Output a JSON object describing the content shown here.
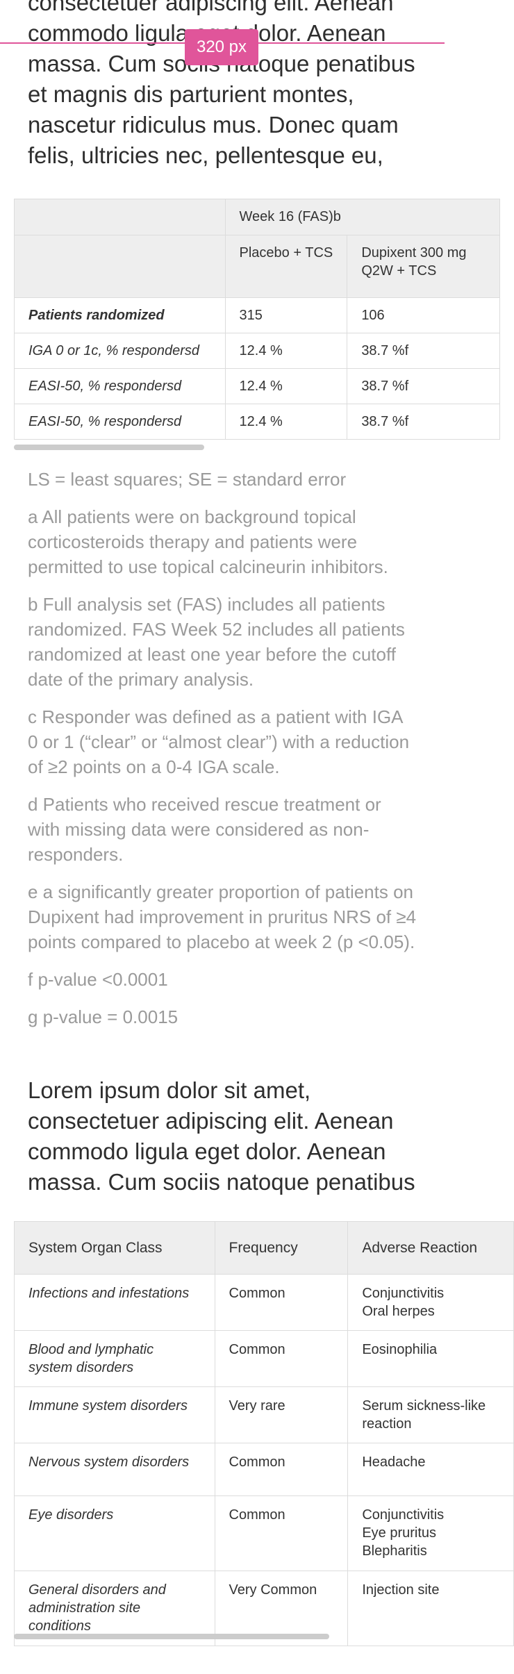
{
  "intro_paragraph": "consectetuer adipiscing elit. Aenean commodo ligula eget dolor. Aenean massa. Cum sociis natoque penatibus et magnis dis parturient montes, nascetur ridiculus mus. Donec quam felis, ultricies nec, pellentesque eu,",
  "width_badge": "320 px",
  "efficacy_table": {
    "group_header": "Week 16 (FAS)b",
    "columns": [
      "",
      "Placebo + TCS",
      "Dupixent 300 mg Q2W + TCS"
    ],
    "rows": [
      {
        "label": "Patients randomized",
        "placebo": "315",
        "dupixent": "106"
      },
      {
        "label": "IGA 0 or 1c, % respondersd",
        "placebo": "12.4 %",
        "dupixent": "38.7 %f"
      },
      {
        "label": "EASI-50, % respondersd",
        "placebo": "12.4 %",
        "dupixent": "38.7 %f"
      },
      {
        "label": "EASI-50, % respondersd",
        "placebo": "12.4 %",
        "dupixent": "38.7 %f"
      }
    ]
  },
  "footnotes": [
    "LS = least squares; SE = standard error",
    "a All patients were on background topical corticosteroids therapy and patients were permitted to use topical calcineurin inhibitors.",
    "b Full analysis set (FAS) includes all patients randomized. FAS Week 52 includes all patients randomized at least one year before the cutoff date of the primary analysis.",
    "c Responder was defined as a patient with IGA 0 or 1 (“clear” or “almost clear”) with a reduction of ≥2 points on a 0-4 IGA scale.",
    "d Patients who received rescue treatment or with missing data were considered as non-responders.",
    "e a significantly greater proportion of patients on Dupixent had improvement in pruritus NRS of ≥4 points compared to placebo at week 2 (p <0.05).",
    "f p-value <0.0001",
    "g p-value = 0.0015"
  ],
  "second_paragraph": "Lorem ipsum dolor sit amet, consectetuer adipiscing elit. Aenean commodo ligula eget dolor. Aenean massa. Cum sociis natoque penatibus",
  "adverse_table": {
    "columns": [
      "System Organ Class",
      "Frequency",
      "Adverse Reaction"
    ],
    "rows": [
      {
        "soc": "Infections and infestations",
        "frequency": "Common",
        "reaction": "Conjunctivitis\nOral herpes"
      },
      {
        "soc": "Blood and lymphatic system disorders",
        "frequency": "Common",
        "reaction": "Eosinophilia"
      },
      {
        "soc": "Immune system disorders",
        "frequency": "Very rare",
        "reaction": "Serum sickness-like reaction"
      },
      {
        "soc": "Nervous system disorders",
        "frequency": "Common",
        "reaction": "Headache"
      },
      {
        "soc": "Eye disorders",
        "frequency": "Common",
        "reaction": "Conjunctivitis\nEye pruritus\nBlepharitis"
      },
      {
        "soc": "General disorders and administration site conditions",
        "frequency": "Very Common",
        "reaction": "Injection site"
      }
    ]
  },
  "colors": {
    "accent_badge": "#e0559a",
    "header_bg": "#eeeeee",
    "footnote_text": "#9a9a9a"
  }
}
